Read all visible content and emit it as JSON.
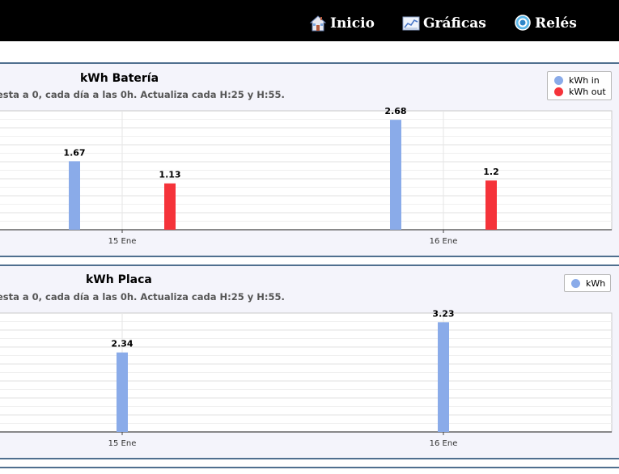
{
  "nav": {
    "items": [
      {
        "label": "Inicio",
        "icon": "home-icon"
      },
      {
        "label": "Gráficas",
        "icon": "chart-icon"
      },
      {
        "label": "Relés",
        "icon": "relay-icon"
      }
    ]
  },
  "panels": [
    {
      "title": "kWh Batería",
      "subtitle": "esta a 0, cada día a las 0h. Actualiza cada H:25 y H:55."
    },
    {
      "title": "kWh Placa",
      "subtitle": "esta a 0, cada día a las 0h. Actualiza cada H:25 y H:55."
    }
  ],
  "chart_data": [
    {
      "type": "bar",
      "title": "kWh Batería",
      "categories": [
        "15 Ene",
        "16 Ene"
      ],
      "series": [
        {
          "name": "kWh in",
          "color": "#8aabe9",
          "values": [
            1.67,
            2.68
          ]
        },
        {
          "name": "kWh out",
          "color": "#f5333a",
          "values": [
            1.13,
            1.2
          ]
        }
      ],
      "ylim": [
        0,
        2.9
      ],
      "grid": true,
      "legend": "top-right"
    },
    {
      "type": "bar",
      "title": "kWh Placa",
      "categories": [
        "15 Ene",
        "16 Ene"
      ],
      "series": [
        {
          "name": "kWh",
          "color": "#8aabe9",
          "values": [
            2.34,
            3.23
          ]
        }
      ],
      "ylim": [
        0,
        3.5
      ],
      "grid": true,
      "legend": "top-right"
    }
  ]
}
